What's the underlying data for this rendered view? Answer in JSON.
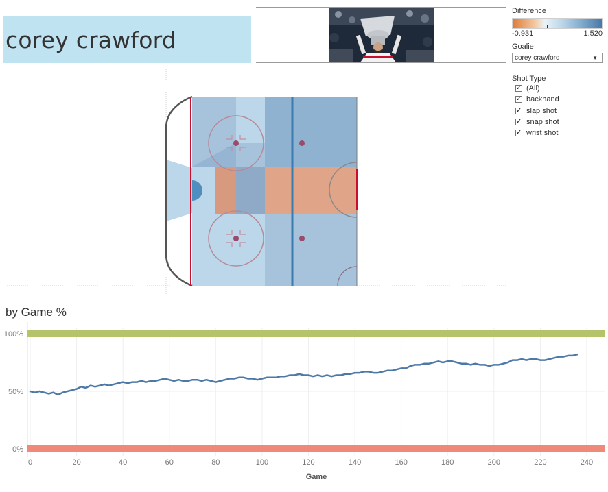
{
  "header": {
    "title": "corey crawford"
  },
  "legend": {
    "title": "Difference",
    "min_label": "-0.931",
    "max_label": "1.520",
    "min": -0.931,
    "max": 1.52
  },
  "goalie_filter": {
    "label": "Goalie",
    "value": "corey crawford"
  },
  "shot_type_filter": {
    "label": "Shot Type",
    "items": [
      {
        "label": "(All)",
        "checked": true
      },
      {
        "label": "backhand",
        "checked": true
      },
      {
        "label": "slap shot",
        "checked": true
      },
      {
        "label": "snap shot",
        "checked": true
      },
      {
        "label": "wrist shot",
        "checked": true
      }
    ]
  },
  "colors": {
    "title_bg": "#bfe3f1",
    "line": "#4e79a7",
    "top_band": "#b5c46a",
    "bottom_band": "#ef8a7a",
    "negative": "#e07b39",
    "positive": "#4a78a8"
  },
  "chart_section": {
    "title": "by Game %"
  },
  "chart_data": {
    "type": "line",
    "xlabel": "Game",
    "ylabel": "",
    "xlim": [
      0,
      248
    ],
    "ylim": [
      0,
      100
    ],
    "x_ticks": [
      0,
      20,
      40,
      60,
      80,
      100,
      120,
      140,
      160,
      180,
      200,
      220,
      240
    ],
    "y_ticks": [
      {
        "value": 0,
        "label": "0%"
      },
      {
        "value": 50,
        "label": "50%"
      },
      {
        "value": 100,
        "label": "100%"
      }
    ],
    "reference_bands": [
      {
        "value": 100,
        "color": "#b5c46a"
      },
      {
        "value": 0,
        "color": "#ef8a7a"
      }
    ],
    "series": [
      {
        "points": [
          [
            0,
            50
          ],
          [
            2,
            49
          ],
          [
            4,
            50
          ],
          [
            6,
            49
          ],
          [
            8,
            48
          ],
          [
            10,
            49
          ],
          [
            12,
            47
          ],
          [
            14,
            49
          ],
          [
            16,
            50
          ],
          [
            18,
            51
          ],
          [
            20,
            52
          ],
          [
            22,
            54
          ],
          [
            24,
            53
          ],
          [
            26,
            55
          ],
          [
            28,
            54
          ],
          [
            30,
            55
          ],
          [
            32,
            56
          ],
          [
            34,
            55
          ],
          [
            36,
            56
          ],
          [
            38,
            57
          ],
          [
            40,
            58
          ],
          [
            42,
            57
          ],
          [
            44,
            58
          ],
          [
            46,
            58
          ],
          [
            48,
            59
          ],
          [
            50,
            58
          ],
          [
            52,
            59
          ],
          [
            54,
            59
          ],
          [
            56,
            60
          ],
          [
            58,
            61
          ],
          [
            60,
            60
          ],
          [
            62,
            59
          ],
          [
            64,
            60
          ],
          [
            66,
            59
          ],
          [
            68,
            59
          ],
          [
            70,
            60
          ],
          [
            72,
            60
          ],
          [
            74,
            59
          ],
          [
            76,
            60
          ],
          [
            78,
            59
          ],
          [
            80,
            58
          ],
          [
            82,
            59
          ],
          [
            84,
            60
          ],
          [
            86,
            61
          ],
          [
            88,
            61
          ],
          [
            90,
            62
          ],
          [
            92,
            62
          ],
          [
            94,
            61
          ],
          [
            96,
            61
          ],
          [
            98,
            60
          ],
          [
            100,
            61
          ],
          [
            102,
            62
          ],
          [
            104,
            62
          ],
          [
            106,
            62
          ],
          [
            108,
            63
          ],
          [
            110,
            63
          ],
          [
            112,
            64
          ],
          [
            114,
            64
          ],
          [
            116,
            65
          ],
          [
            118,
            64
          ],
          [
            120,
            64
          ],
          [
            122,
            63
          ],
          [
            124,
            64
          ],
          [
            126,
            63
          ],
          [
            128,
            64
          ],
          [
            130,
            63
          ],
          [
            132,
            64
          ],
          [
            134,
            64
          ],
          [
            136,
            65
          ],
          [
            138,
            65
          ],
          [
            140,
            66
          ],
          [
            142,
            66
          ],
          [
            144,
            67
          ],
          [
            146,
            67
          ],
          [
            148,
            66
          ],
          [
            150,
            66
          ],
          [
            152,
            67
          ],
          [
            154,
            68
          ],
          [
            156,
            68
          ],
          [
            158,
            69
          ],
          [
            160,
            70
          ],
          [
            162,
            70
          ],
          [
            164,
            72
          ],
          [
            166,
            73
          ],
          [
            168,
            73
          ],
          [
            170,
            74
          ],
          [
            172,
            74
          ],
          [
            174,
            75
          ],
          [
            176,
            76
          ],
          [
            178,
            75
          ],
          [
            180,
            76
          ],
          [
            182,
            76
          ],
          [
            184,
            75
          ],
          [
            186,
            74
          ],
          [
            188,
            74
          ],
          [
            190,
            73
          ],
          [
            192,
            74
          ],
          [
            194,
            73
          ],
          [
            196,
            73
          ],
          [
            198,
            72
          ],
          [
            200,
            73
          ],
          [
            202,
            73
          ],
          [
            204,
            74
          ],
          [
            206,
            75
          ],
          [
            208,
            77
          ],
          [
            210,
            77
          ],
          [
            212,
            78
          ],
          [
            214,
            77
          ],
          [
            216,
            78
          ],
          [
            218,
            78
          ],
          [
            220,
            77
          ],
          [
            222,
            77
          ],
          [
            224,
            78
          ],
          [
            226,
            79
          ],
          [
            228,
            80
          ],
          [
            230,
            80
          ],
          [
            232,
            81
          ],
          [
            234,
            81
          ],
          [
            236,
            82
          ]
        ]
      }
    ]
  }
}
